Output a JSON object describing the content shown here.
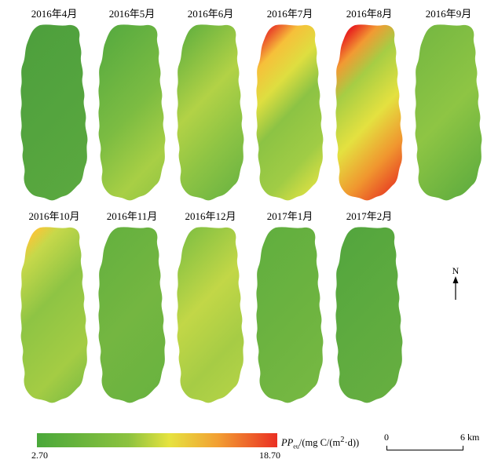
{
  "panels": [
    {
      "label": "2016年4月",
      "gradient": [
        [
          "0",
          "#4ea03d"
        ],
        [
          "0.5",
          "#54a43e"
        ],
        [
          "1",
          "#5aa83f"
        ]
      ]
    },
    {
      "label": "2016年5月",
      "gradient": [
        [
          "0",
          "#5aac40"
        ],
        [
          "0.5",
          "#7cbc42"
        ],
        [
          "0.85",
          "#a8cf45"
        ],
        [
          "1",
          "#9ac844"
        ]
      ]
    },
    {
      "label": "2016年6月",
      "gradient": [
        [
          "0",
          "#6cb440"
        ],
        [
          "0.4",
          "#b2d246"
        ],
        [
          "0.7",
          "#8ec444"
        ],
        [
          "1",
          "#70b642"
        ]
      ]
    },
    {
      "label": "2016年7月",
      "gradient": [
        [
          "0",
          "#ea4a2a"
        ],
        [
          "0.12",
          "#f6c03a"
        ],
        [
          "0.3",
          "#dede40"
        ],
        [
          "0.5",
          "#8cc344"
        ],
        [
          "0.8",
          "#a0cc45"
        ],
        [
          "1",
          "#d8df44"
        ]
      ]
    },
    {
      "label": "2016年8月",
      "gradient": [
        [
          "0",
          "#e8261f"
        ],
        [
          "0.12",
          "#f29a33"
        ],
        [
          "0.28",
          "#a6cd44"
        ],
        [
          "0.55",
          "#e4e140"
        ],
        [
          "0.8",
          "#f0962f"
        ],
        [
          "1",
          "#e84424"
        ]
      ]
    },
    {
      "label": "2016年9月",
      "gradient": [
        [
          "0",
          "#78b942"
        ],
        [
          "0.5",
          "#8ec544"
        ],
        [
          "1",
          "#62ae3f"
        ]
      ]
    },
    {
      "label": "2016年10月",
      "gradient": [
        [
          "0",
          "#f2c83a"
        ],
        [
          "0.1",
          "#c6d84a"
        ],
        [
          "0.4",
          "#8ec444"
        ],
        [
          "0.8",
          "#a4cc44"
        ],
        [
          "1",
          "#86c043"
        ]
      ]
    },
    {
      "label": "2016年11月",
      "gradient": [
        [
          "0",
          "#66b13f"
        ],
        [
          "0.5",
          "#74b641"
        ],
        [
          "1",
          "#6ab340"
        ]
      ]
    },
    {
      "label": "2016年12月",
      "gradient": [
        [
          "0",
          "#88c243"
        ],
        [
          "0.4",
          "#c2d747"
        ],
        [
          "0.75",
          "#a6cc45"
        ],
        [
          "1",
          "#b2d246"
        ]
      ]
    },
    {
      "label": "2017年1月",
      "gradient": [
        [
          "0",
          "#62af3f"
        ],
        [
          "0.5",
          "#6cb340"
        ],
        [
          "1",
          "#76b842"
        ]
      ]
    },
    {
      "label": "2017年2月",
      "gradient": [
        [
          "0",
          "#54a63e"
        ],
        [
          "0.5",
          "#5eab3f"
        ],
        [
          "1",
          "#66ae40"
        ]
      ]
    }
  ],
  "north_label": "N",
  "legend": {
    "var": "PP",
    "sub": "eu",
    "unit": "/(mg C/(m",
    "sup": "2",
    "unit_end": "·d))",
    "min": "2.70",
    "max": "18.70"
  },
  "scalebar": {
    "start": "0",
    "end": "6 km"
  }
}
